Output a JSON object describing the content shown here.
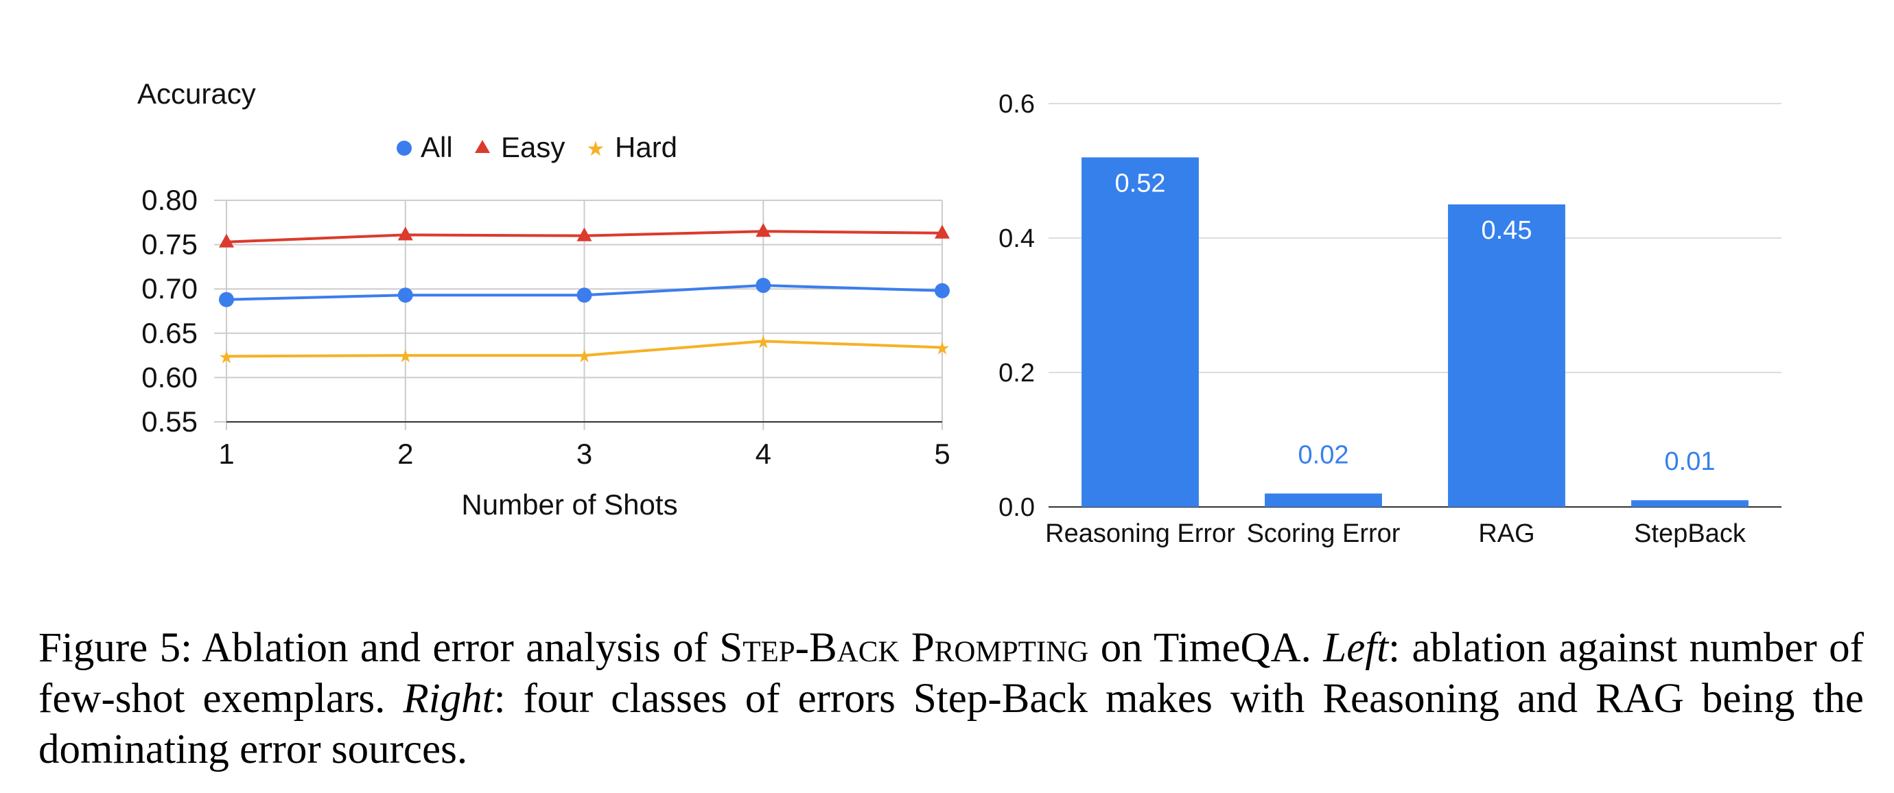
{
  "chart_data": [
    {
      "type": "line",
      "ylabel": "Accuracy",
      "xlabel": "Number of Shots",
      "x": [
        1,
        2,
        3,
        4,
        5
      ],
      "ylim": [
        0.55,
        0.8
      ],
      "yticks": [
        "0.80",
        "0.75",
        "0.70",
        "0.65",
        "0.60",
        "0.55"
      ],
      "grid": true,
      "legend_position": "top",
      "series": [
        {
          "name": "All",
          "marker": "circle",
          "color": "#3b7ded",
          "values": [
            0.688,
            0.693,
            0.693,
            0.704,
            0.698
          ]
        },
        {
          "name": "Easy",
          "marker": "triangle",
          "color": "#dc3a2d",
          "values": [
            0.753,
            0.761,
            0.76,
            0.765,
            0.763
          ]
        },
        {
          "name": "Hard",
          "marker": "star",
          "color": "#f6b125",
          "values": [
            0.624,
            0.625,
            0.625,
            0.641,
            0.634
          ]
        }
      ]
    },
    {
      "type": "bar",
      "categories": [
        "Reasoning Error",
        "Scoring Error",
        "RAG",
        "StepBack"
      ],
      "values": [
        0.52,
        0.02,
        0.45,
        0.01
      ],
      "value_labels": [
        "0.52",
        "0.02",
        "0.45",
        "0.01"
      ],
      "ylim": [
        0,
        0.6
      ],
      "yticks": [
        "0.0",
        "0.2",
        "0.4",
        "0.6"
      ],
      "grid": true,
      "color": "#3680ec"
    }
  ],
  "caption": {
    "label": "Figure 5: Ablation and error analysis of ",
    "method": "Step-Back Prompting",
    "after_method": " on TimeQA. ",
    "left_word": "Left",
    "left_text": ": ablation against number of few-shot exemplars. ",
    "right_word": "Right",
    "right_text": ": four classes of errors Step-Back makes with Reasoning and RAG being the dominating error sources."
  }
}
